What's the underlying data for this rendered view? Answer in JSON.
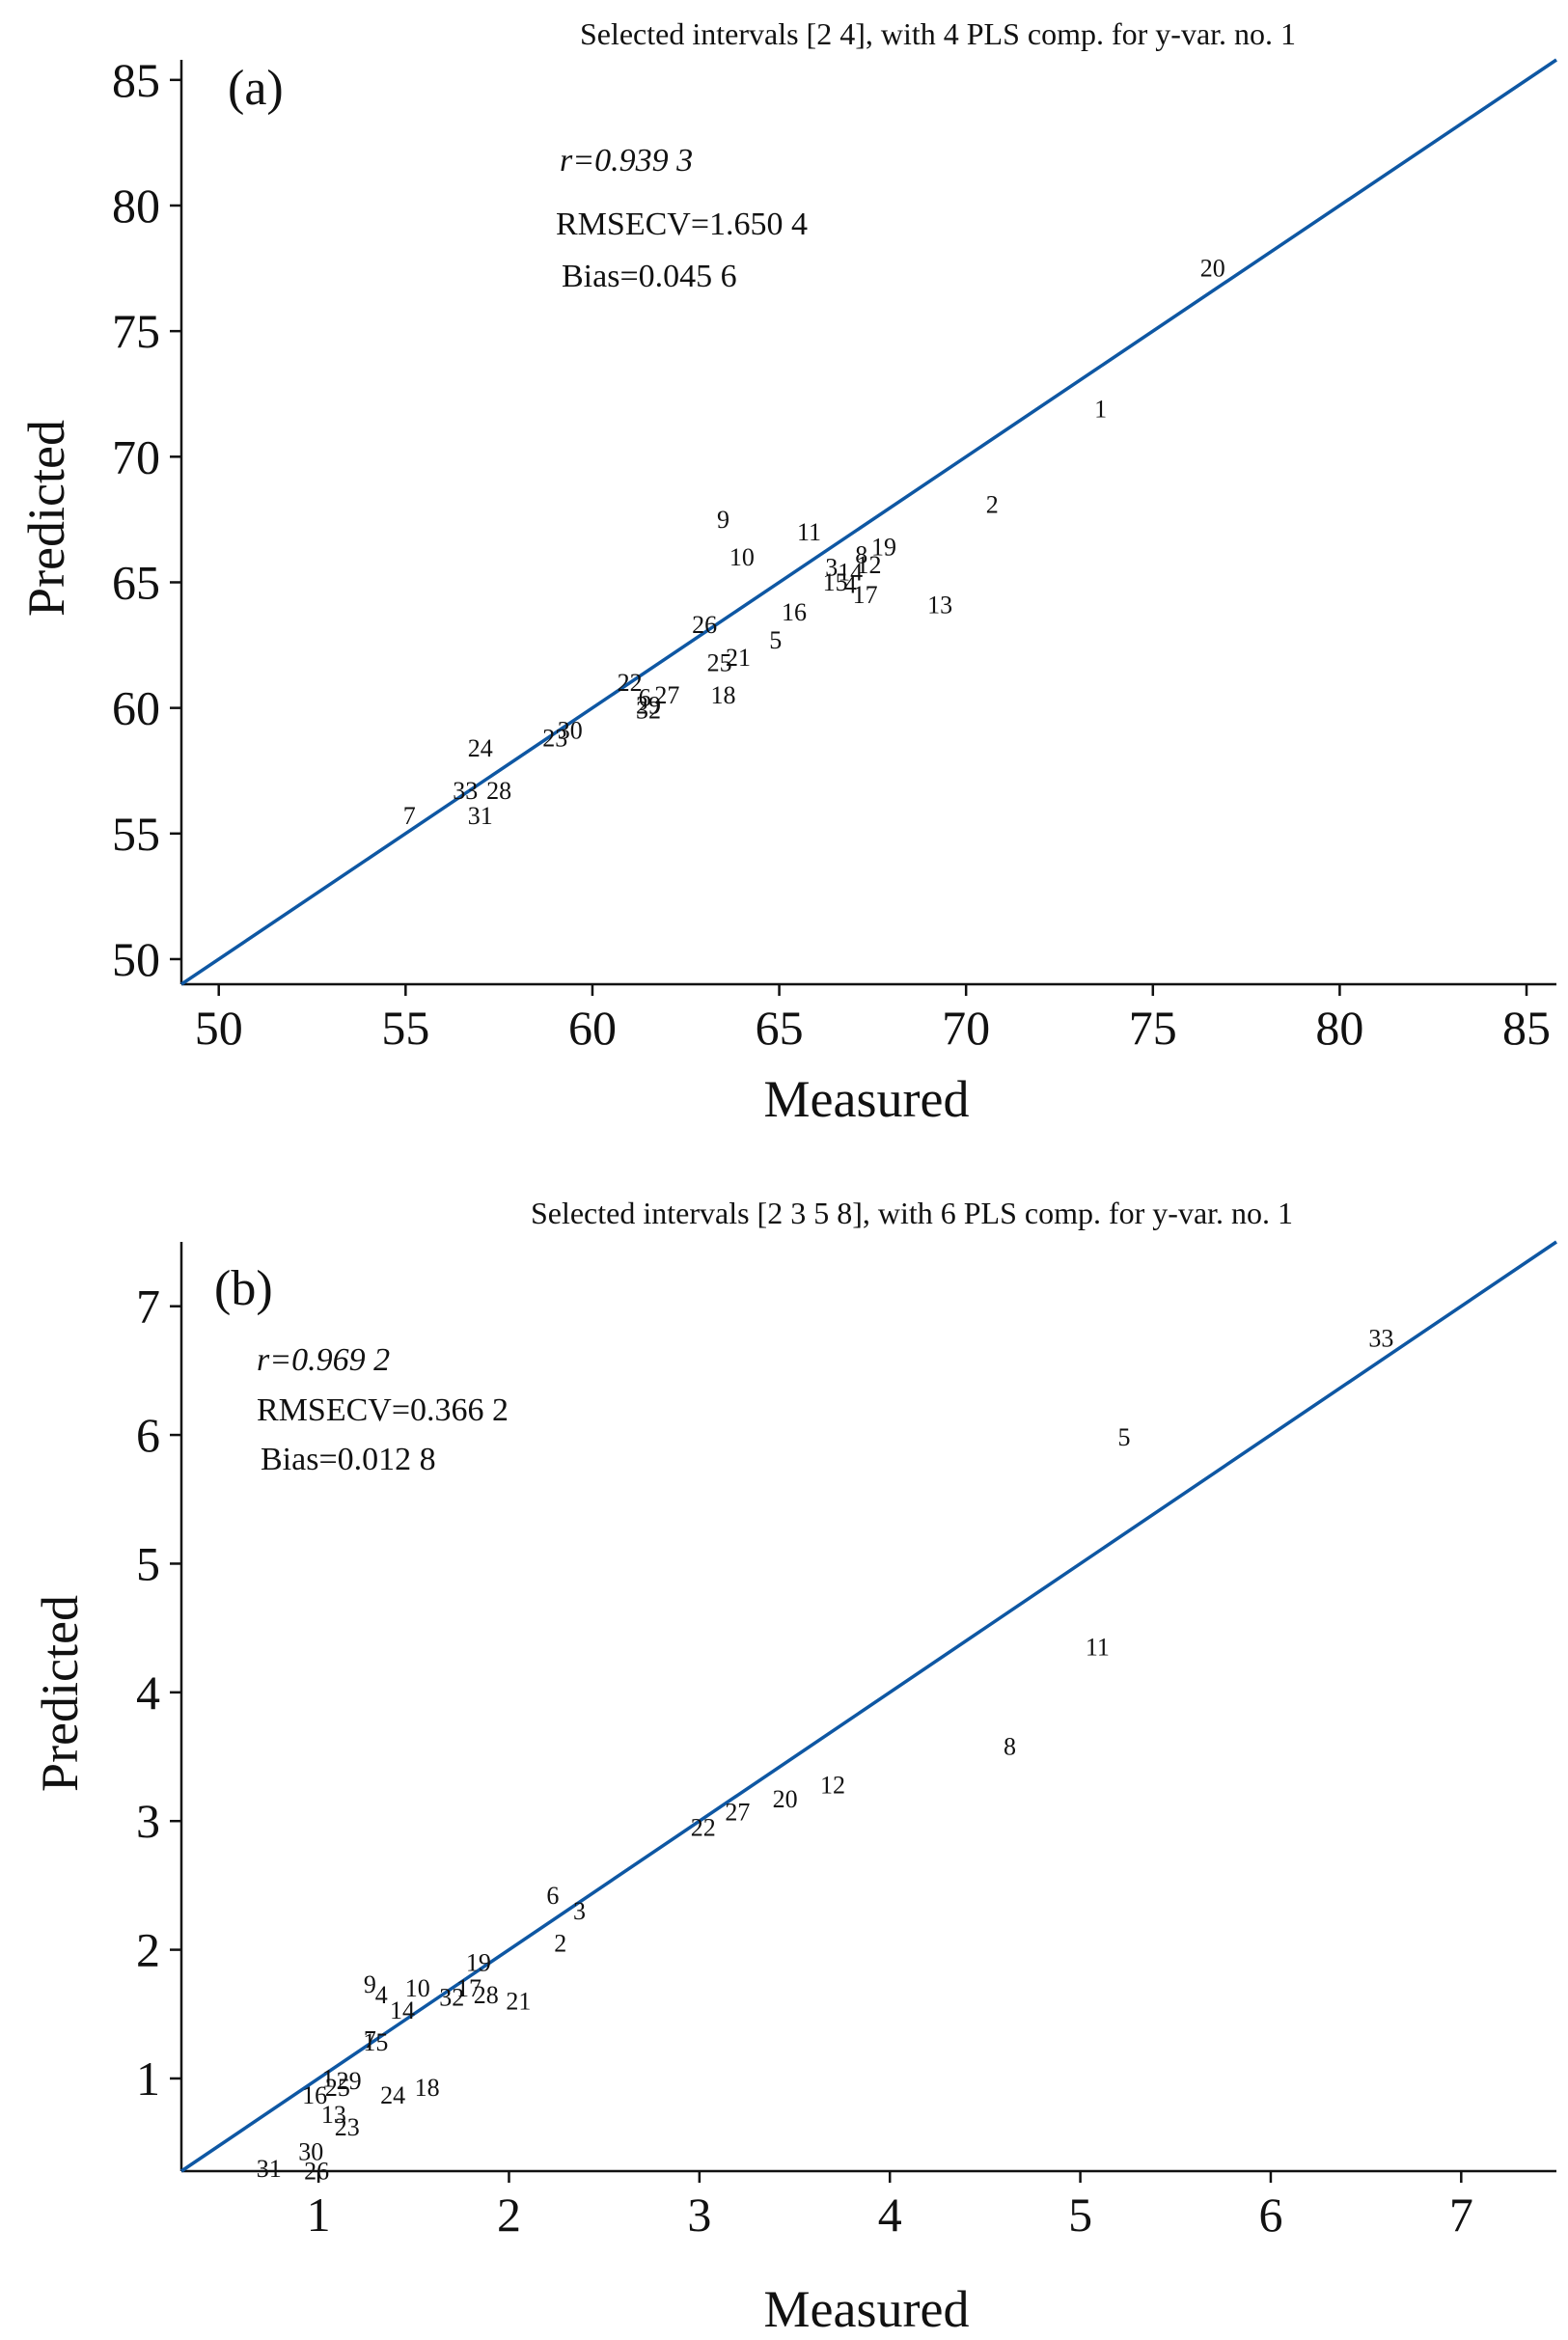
{
  "chart_data": [
    {
      "type": "scatter",
      "panel_label": "(a)",
      "title": "Selected intervals [2  4], with 4 PLS comp. for y-var. no. 1",
      "xlabel": "Measured",
      "ylabel": "Predicted",
      "xlim": [
        49,
        85.8
      ],
      "ylim": [
        49,
        85.8
      ],
      "xticks": [
        50,
        55,
        60,
        65,
        70,
        75,
        80,
        85
      ],
      "yticks": [
        50,
        55,
        60,
        65,
        70,
        75,
        80,
        85
      ],
      "grid": false,
      "line_color": "#0e57a3",
      "stats": {
        "r": "r=0.939 3",
        "rmsecv": "RMSECV=1.650 4",
        "bias": "Bias=0.045 6"
      },
      "line": {
        "x": [
          49,
          85.8
        ],
        "y": [
          49,
          85.8
        ]
      },
      "points": [
        {
          "label": "20",
          "x": 76.6,
          "y": 77.5
        },
        {
          "label": "1",
          "x": 73.6,
          "y": 71.9
        },
        {
          "label": "2",
          "x": 70.7,
          "y": 68.1
        },
        {
          "label": "9",
          "x": 63.5,
          "y": 67.5
        },
        {
          "label": "11",
          "x": 65.8,
          "y": 67.0
        },
        {
          "label": "10",
          "x": 64.0,
          "y": 66.0
        },
        {
          "label": "19",
          "x": 67.8,
          "y": 66.4
        },
        {
          "label": "8",
          "x": 67.2,
          "y": 66.1
        },
        {
          "label": "12",
          "x": 67.4,
          "y": 65.7
        },
        {
          "label": "3",
          "x": 66.4,
          "y": 65.6
        },
        {
          "label": "14",
          "x": 66.9,
          "y": 65.4
        },
        {
          "label": "15",
          "x": 66.5,
          "y": 65.0
        },
        {
          "label": "4",
          "x": 66.9,
          "y": 64.9
        },
        {
          "label": "17",
          "x": 67.3,
          "y": 64.5
        },
        {
          "label": "13",
          "x": 69.3,
          "y": 64.1
        },
        {
          "label": "16",
          "x": 65.4,
          "y": 63.8
        },
        {
          "label": "26",
          "x": 63.0,
          "y": 63.3
        },
        {
          "label": "5",
          "x": 64.9,
          "y": 62.7
        },
        {
          "label": "21",
          "x": 63.9,
          "y": 62.0
        },
        {
          "label": "25",
          "x": 63.4,
          "y": 61.8
        },
        {
          "label": "22",
          "x": 61.0,
          "y": 61.0
        },
        {
          "label": "18",
          "x": 63.5,
          "y": 60.5
        },
        {
          "label": "27",
          "x": 62.0,
          "y": 60.5
        },
        {
          "label": "6",
          "x": 61.4,
          "y": 60.4
        },
        {
          "label": "29",
          "x": 61.5,
          "y": 60.1
        },
        {
          "label": "32",
          "x": 61.5,
          "y": 59.9
        },
        {
          "label": "30",
          "x": 59.4,
          "y": 59.1
        },
        {
          "label": "23",
          "x": 59.0,
          "y": 58.8
        },
        {
          "label": "24",
          "x": 57.0,
          "y": 58.4
        },
        {
          "label": "33",
          "x": 56.6,
          "y": 56.7
        },
        {
          "label": "28",
          "x": 57.5,
          "y": 56.7
        },
        {
          "label": "7",
          "x": 55.1,
          "y": 55.7
        },
        {
          "label": "31",
          "x": 57.0,
          "y": 55.7
        }
      ]
    },
    {
      "type": "scatter",
      "panel_label": "(b)",
      "title": "Selected intervals [2  3  5  8], with 6 PLS comp. for y-var. no. 1",
      "xlabel": "Measured",
      "ylabel": "Predicted",
      "xlim": [
        0.28,
        7.5
      ],
      "ylim": [
        0.28,
        7.5
      ],
      "xticks": [
        1,
        2,
        3,
        4,
        5,
        6,
        7
      ],
      "yticks": [
        1,
        2,
        3,
        4,
        5,
        6,
        7
      ],
      "grid": false,
      "line_color": "#0e57a3",
      "stats": {
        "r": "r=0.969 2",
        "rmsecv": "RMSECV=0.366 2",
        "bias": "Bias=0.012 8"
      },
      "line": {
        "x": [
          0.28,
          7.5
        ],
        "y": [
          0.28,
          7.5
        ]
      },
      "points": [
        {
          "label": "33",
          "x": 6.58,
          "y": 6.75
        },
        {
          "label": "5",
          "x": 5.23,
          "y": 5.98
        },
        {
          "label": "11",
          "x": 5.09,
          "y": 4.35
        },
        {
          "label": "8",
          "x": 4.63,
          "y": 3.58
        },
        {
          "label": "12",
          "x": 3.7,
          "y": 3.28
        },
        {
          "label": "20",
          "x": 3.45,
          "y": 3.17
        },
        {
          "label": "27",
          "x": 3.2,
          "y": 3.07
        },
        {
          "label": "22",
          "x": 3.02,
          "y": 2.95
        },
        {
          "label": "6",
          "x": 2.23,
          "y": 2.42
        },
        {
          "label": "3",
          "x": 2.37,
          "y": 2.3
        },
        {
          "label": "2",
          "x": 2.27,
          "y": 2.05
        },
        {
          "label": "19",
          "x": 1.84,
          "y": 1.9
        },
        {
          "label": "17",
          "x": 1.79,
          "y": 1.7
        },
        {
          "label": "9",
          "x": 1.27,
          "y": 1.73
        },
        {
          "label": "10",
          "x": 1.52,
          "y": 1.7
        },
        {
          "label": "4",
          "x": 1.33,
          "y": 1.65
        },
        {
          "label": "32",
          "x": 1.7,
          "y": 1.63
        },
        {
          "label": "28",
          "x": 1.88,
          "y": 1.65
        },
        {
          "label": "21",
          "x": 2.05,
          "y": 1.6
        },
        {
          "label": "14",
          "x": 1.44,
          "y": 1.53
        },
        {
          "label": "7",
          "x": 1.27,
          "y": 1.3
        },
        {
          "label": "15",
          "x": 1.3,
          "y": 1.28
        },
        {
          "label": "1",
          "x": 1.05,
          "y": 1.0
        },
        {
          "label": "29",
          "x": 1.16,
          "y": 0.98
        },
        {
          "label": "25",
          "x": 1.1,
          "y": 0.93
        },
        {
          "label": "18",
          "x": 1.57,
          "y": 0.93
        },
        {
          "label": "24",
          "x": 1.39,
          "y": 0.87
        },
        {
          "label": "16",
          "x": 0.98,
          "y": 0.87
        },
        {
          "label": "13",
          "x": 1.08,
          "y": 0.72
        },
        {
          "label": "23",
          "x": 1.15,
          "y": 0.62
        },
        {
          "label": "30",
          "x": 0.96,
          "y": 0.43
        },
        {
          "label": "26",
          "x": 0.99,
          "y": 0.28
        },
        {
          "label": "31",
          "x": 0.74,
          "y": 0.3
        }
      ]
    }
  ]
}
